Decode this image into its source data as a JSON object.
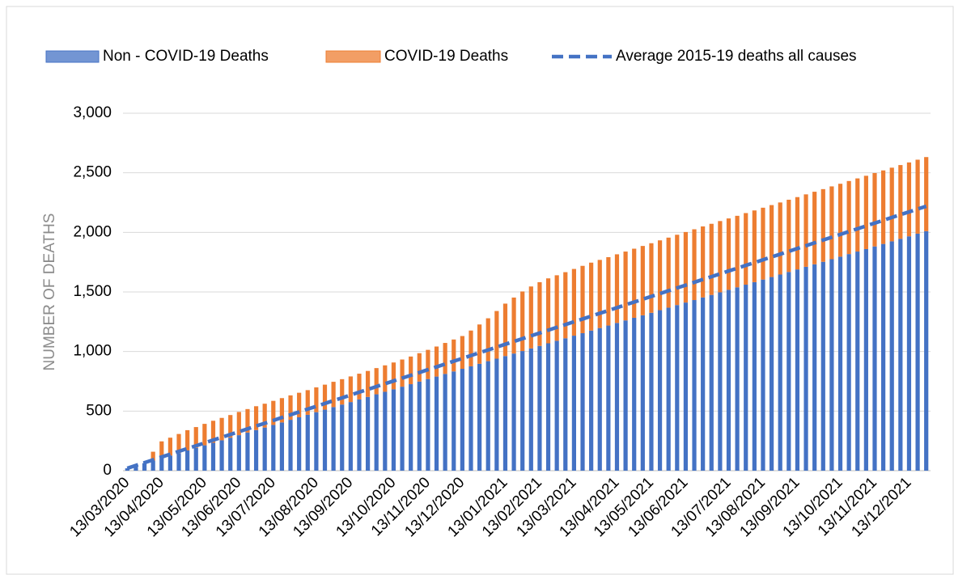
{
  "chart_data": {
    "type": "bar",
    "stacked": true,
    "yaxis_label": "NUMBER OF DEATHS",
    "categories": [
      "13/03/2020",
      null,
      null,
      null,
      "13/04/2020",
      null,
      null,
      null,
      null,
      "13/05/2020",
      null,
      null,
      null,
      "13/06/2020",
      null,
      null,
      null,
      "13/07/2020",
      null,
      null,
      null,
      null,
      "13/08/2020",
      null,
      null,
      null,
      "13/09/2020",
      null,
      null,
      null,
      null,
      "13/10/2020",
      null,
      null,
      null,
      "13/11/2020",
      null,
      null,
      null,
      "13/12/2020",
      null,
      null,
      null,
      null,
      "13/01/2021",
      null,
      null,
      null,
      "13/02/2021",
      null,
      null,
      null,
      "13/03/2021",
      null,
      null,
      null,
      null,
      "13/04/2021",
      null,
      null,
      null,
      "13/05/2021",
      null,
      null,
      null,
      "13/06/2021",
      null,
      null,
      null,
      null,
      "13/07/2021",
      null,
      null,
      null,
      "13/08/2021",
      null,
      null,
      null,
      "13/09/2021",
      null,
      null,
      null,
      null,
      "13/10/2021",
      null,
      null,
      null,
      "13/11/2021",
      null,
      null,
      null,
      "13/12/2021",
      null,
      null
    ],
    "series": [
      {
        "name": "Non - COVID-19 Deaths",
        "type": "bar",
        "color": "#4472c4",
        "values": [
          20,
          41,
          63,
          84,
          106,
          127,
          148,
          170,
          191,
          213,
          234,
          255,
          277,
          298,
          320,
          341,
          362,
          384,
          405,
          427,
          448,
          469,
          491,
          512,
          534,
          555,
          576,
          598,
          619,
          641,
          662,
          683,
          705,
          726,
          748,
          769,
          790,
          812,
          833,
          855,
          876,
          897,
          919,
          940,
          962,
          983,
          1004,
          1026,
          1047,
          1069,
          1090,
          1111,
          1133,
          1154,
          1176,
          1197,
          1218,
          1240,
          1261,
          1283,
          1304,
          1325,
          1347,
          1368,
          1390,
          1411,
          1432,
          1454,
          1475,
          1497,
          1518,
          1539,
          1561,
          1582,
          1604,
          1625,
          1646,
          1668,
          1689,
          1711,
          1732,
          1753,
          1775,
          1796,
          1818,
          1839,
          1860,
          1882,
          1903,
          1925,
          1946,
          1967,
          1989,
          2010
        ]
      },
      {
        "name": "COVID-19 Deaths",
        "type": "bar",
        "color": "#ed7d31",
        "values": [
          0,
          0,
          0,
          75,
          140,
          150,
          160,
          170,
          175,
          180,
          185,
          188,
          190,
          195,
          197,
          200,
          200,
          202,
          204,
          205,
          206,
          207,
          208,
          210,
          212,
          213,
          215,
          216,
          218,
          220,
          222,
          225,
          228,
          232,
          238,
          245,
          252,
          260,
          268,
          275,
          300,
          330,
          360,
          400,
          440,
          470,
          500,
          520,
          535,
          545,
          550,
          555,
          560,
          565,
          570,
          572,
          574,
          576,
          578,
          580,
          582,
          584,
          586,
          588,
          590,
          592,
          594,
          596,
          597,
          598,
          599,
          600,
          601,
          602,
          603,
          604,
          605,
          606,
          607,
          608,
          609,
          610,
          611,
          612,
          613,
          614,
          615,
          616,
          617,
          618,
          619,
          620,
          621,
          622
        ]
      },
      {
        "name": "Average 2015-19 deaths all causes",
        "type": "line",
        "dashed": true,
        "color": "#4472c4",
        "values": [
          20,
          44,
          67,
          91,
          115,
          138,
          162,
          186,
          209,
          233,
          257,
          280,
          304,
          327,
          351,
          375,
          398,
          422,
          446,
          469,
          493,
          517,
          540,
          564,
          588,
          611,
          635,
          659,
          682,
          706,
          730,
          753,
          777,
          800,
          824,
          848,
          871,
          895,
          919,
          942,
          966,
          990,
          1013,
          1037,
          1061,
          1084,
          1108,
          1132,
          1155,
          1179,
          1203,
          1226,
          1250,
          1273,
          1297,
          1321,
          1344,
          1368,
          1392,
          1415,
          1439,
          1463,
          1486,
          1510,
          1534,
          1557,
          1581,
          1605,
          1628,
          1652,
          1676,
          1699,
          1723,
          1746,
          1770,
          1794,
          1817,
          1841,
          1865,
          1888,
          1912,
          1936,
          1959,
          1983,
          2007,
          2030,
          2054,
          2078,
          2101,
          2125,
          2149,
          2172,
          2196,
          2219
        ]
      }
    ],
    "ylim": [
      0,
      3000
    ],
    "yticks": [
      0,
      {
        "value": 500,
        "label": "500"
      },
      {
        "value": 1000,
        "label": "1,000"
      },
      {
        "value": 1500,
        "label": "1,500"
      },
      {
        "value": 2000,
        "label": "2,000"
      },
      {
        "value": 2500,
        "label": "2,500"
      },
      {
        "value": 3000,
        "label": "3,000"
      }
    ],
    "grid": true,
    "legend": "top"
  }
}
